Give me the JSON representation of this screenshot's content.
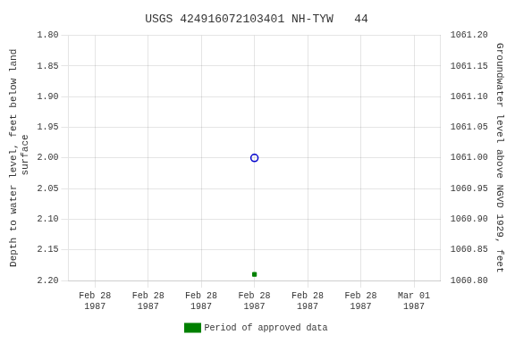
{
  "chart_data": {
    "type": "line",
    "title": "USGS 424916072103401 NH-TYW   44",
    "y_label": "Depth to water level, feet below land\n surface",
    "y2_label": "Groundwater level above NGVD 1929, feet",
    "categories": [
      "Feb 28\n1987",
      "Feb 28\n1987",
      "Feb 28\n1987",
      "Feb 28\n1987",
      "Feb 28\n1987",
      "Feb 28\n1987",
      "Mar 01\n1987"
    ],
    "series": [
      {
        "color": "#0000cc",
        "marker": "open_circle",
        "line_style": "none",
        "values": [
          null,
          null,
          null,
          2.0,
          null,
          null,
          null
        ]
      },
      {
        "name": "Period of approved data",
        "color": "#008000",
        "marker": "square",
        "line_style": "none",
        "values": [
          null,
          null,
          null,
          2.19,
          null,
          null,
          null
        ]
      }
    ],
    "ylim": [
      2.2,
      1.8
    ],
    "yticks": [
      {
        "value": 1.8,
        "label": "1.80"
      },
      {
        "value": 1.85,
        "label": "1.85"
      },
      {
        "value": 1.9,
        "label": "1.90"
      },
      {
        "value": 1.95,
        "label": "1.95"
      },
      {
        "value": 2.0,
        "label": "2.00"
      },
      {
        "value": 2.05,
        "label": "2.05"
      },
      {
        "value": 2.1,
        "label": "2.10"
      },
      {
        "value": 2.15,
        "label": "2.15"
      },
      {
        "value": 2.2,
        "label": "2.20"
      }
    ],
    "y2lim": [
      1060.8,
      1061.2
    ],
    "y2ticks": [
      {
        "value": 1060.8,
        "label": "1060.80"
      },
      {
        "value": 1060.85,
        "label": "1060.85"
      },
      {
        "value": 1060.9,
        "label": "1060.90"
      },
      {
        "value": 1060.95,
        "label": "1060.95"
      },
      {
        "value": 1061.0,
        "label": "1061.00"
      },
      {
        "value": 1061.05,
        "label": "1061.05"
      },
      {
        "value": 1061.1,
        "label": "1061.10"
      },
      {
        "value": 1061.15,
        "label": "1061.15"
      },
      {
        "value": 1061.2,
        "label": "1061.20"
      }
    ],
    "grid": true,
    "legend": "bottom"
  }
}
